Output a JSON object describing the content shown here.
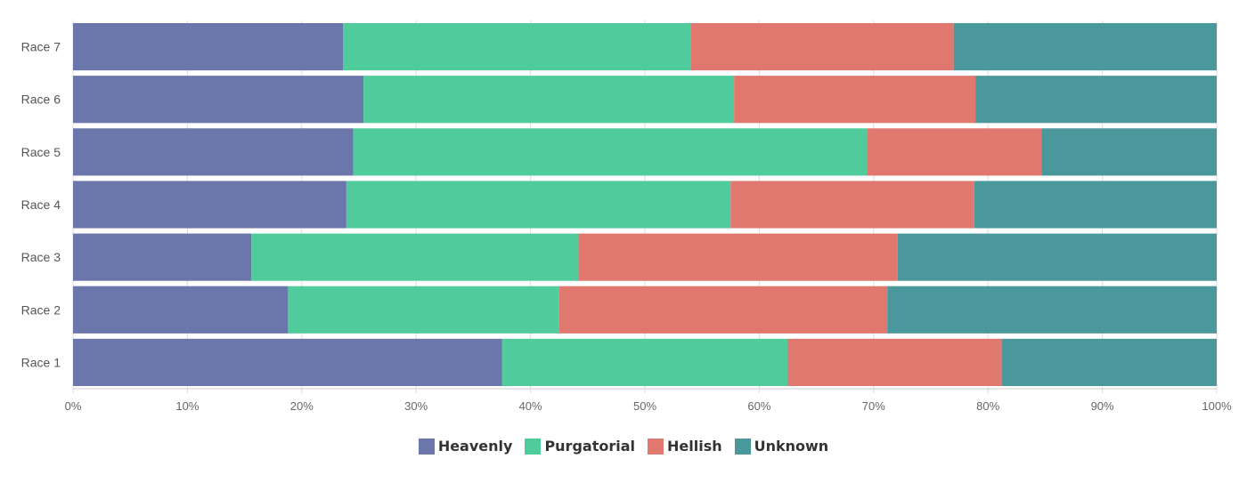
{
  "chart_data": {
    "type": "bar",
    "orientation": "horizontal",
    "stacked": "percent",
    "categories": [
      "Race 1",
      "Race 2",
      "Race 3",
      "Race 4",
      "Race 5",
      "Race 6",
      "Race 7"
    ],
    "series": [
      {
        "name": "Heavenly",
        "color": "#6b76ab",
        "values": [
          37.5,
          18.8,
          15.6,
          23.9,
          24.5,
          25.4,
          23.6
        ]
      },
      {
        "name": "Purgatorial",
        "color": "#50cc9c",
        "values": [
          25.0,
          23.7,
          28.6,
          33.6,
          44.9,
          32.4,
          30.4
        ]
      },
      {
        "name": "Hellish",
        "color": "#e07870",
        "values": [
          18.7,
          28.7,
          27.9,
          21.3,
          15.3,
          21.1,
          23.0
        ]
      },
      {
        "name": "Unknown",
        "color": "#4a979c",
        "values": [
          18.8,
          28.8,
          27.9,
          21.2,
          15.3,
          21.1,
          23.0
        ]
      }
    ],
    "x_ticks": [
      "0%",
      "10%",
      "20%",
      "30%",
      "40%",
      "50%",
      "60%",
      "70%",
      "80%",
      "90%",
      "100%"
    ],
    "xlim": [
      0,
      100
    ],
    "grid": true,
    "legend_position": "bottom"
  }
}
